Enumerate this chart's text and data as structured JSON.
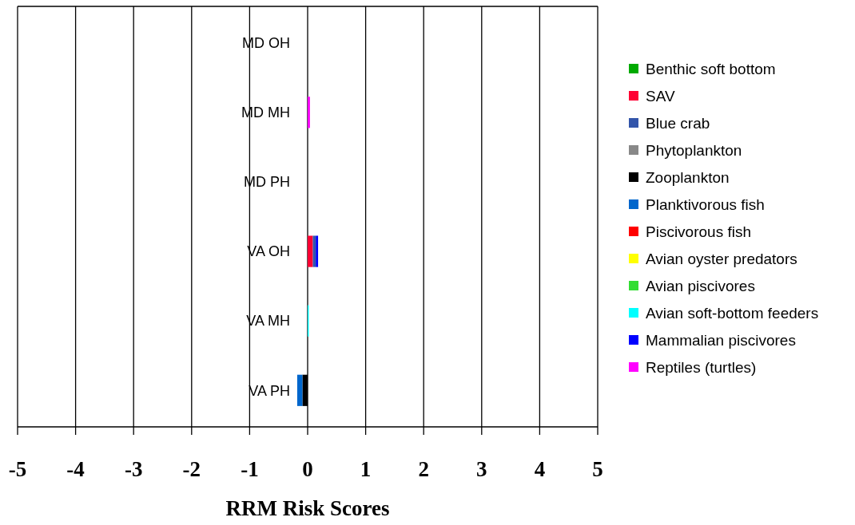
{
  "chart_data": {
    "type": "bar",
    "orientation": "horizontal",
    "stacked": true,
    "xlabel": "RRM Risk Scores",
    "categories": [
      "MD OH",
      "MD MH",
      "MD PH",
      "VA OH",
      "VA MH",
      "VA PH"
    ],
    "xlim": [
      -5,
      5
    ],
    "xticks": [
      -5,
      -4,
      -3,
      -2,
      -1,
      0,
      1,
      2,
      3,
      4,
      5
    ],
    "grid": "x",
    "legend": "right",
    "series": [
      {
        "name": "Benthic soft bottom",
        "color": "#00aa00",
        "values": [
          0,
          0,
          0,
          0,
          0,
          0
        ]
      },
      {
        "name": "SAV",
        "color": "#ff0033",
        "values": [
          0,
          0,
          0,
          0.09,
          0,
          0
        ]
      },
      {
        "name": "Blue crab",
        "color": "#3355aa",
        "values": [
          0,
          0,
          0,
          0.05,
          0,
          0
        ]
      },
      {
        "name": "Phytoplankton",
        "color": "#888888",
        "values": [
          0,
          0,
          0,
          0,
          0,
          0
        ]
      },
      {
        "name": "Zooplankton",
        "color": "#000000",
        "values": [
          0,
          0,
          0,
          0,
          0,
          -0.09
        ]
      },
      {
        "name": "Planktivorous fish",
        "color": "#0066cc",
        "values": [
          0,
          0,
          0,
          0,
          0,
          -0.09
        ]
      },
      {
        "name": "Piscivorous fish",
        "color": "#ff0000",
        "values": [
          0,
          0,
          0,
          0,
          0,
          0
        ]
      },
      {
        "name": "Avian oyster predators",
        "color": "#ffff00",
        "values": [
          0,
          0,
          0,
          0,
          0,
          0
        ]
      },
      {
        "name": "Avian piscivores",
        "color": "#33dd33",
        "values": [
          0,
          0,
          0,
          0,
          0,
          0
        ]
      },
      {
        "name": "Avian soft-bottom feeders",
        "color": "#00ffff",
        "values": [
          0,
          0,
          0,
          0,
          0.02,
          0
        ]
      },
      {
        "name": "Mammalian piscivores",
        "color": "#0000ff",
        "values": [
          0,
          0,
          0,
          0.04,
          0,
          0
        ]
      },
      {
        "name": "Reptiles (turtles)",
        "color": "#ff00ff",
        "values": [
          0,
          0.04,
          0,
          0,
          0,
          0
        ]
      }
    ]
  }
}
